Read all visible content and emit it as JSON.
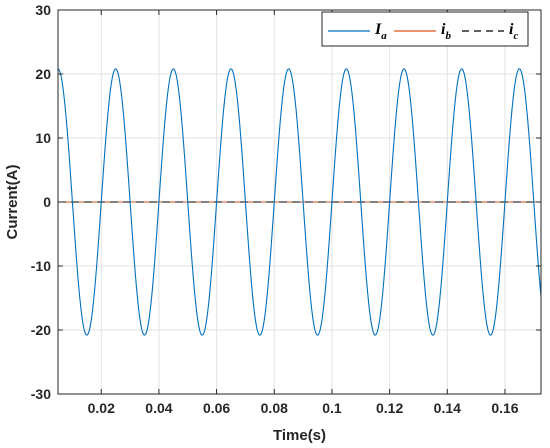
{
  "chart_data": {
    "type": "line",
    "xlabel": "Time(s)",
    "ylabel": "Current(A)",
    "xlim": [
      0.005,
      0.1725
    ],
    "ylim": [
      -30,
      30
    ],
    "xticks": [
      0.02,
      0.04,
      0.06,
      0.08,
      0.1,
      0.12,
      0.14,
      0.16
    ],
    "xtick_labels": [
      "0.02",
      "0.04",
      "0.06",
      "0.08",
      "0.1",
      "0.12",
      "0.14",
      "0.16"
    ],
    "yticks": [
      -30,
      -20,
      -10,
      0,
      10,
      20,
      30
    ],
    "ytick_labels": [
      "-30",
      "-20",
      "-10",
      "0",
      "10",
      "20",
      "30"
    ],
    "grid": true,
    "legend_position": "top-right",
    "series": [
      {
        "name": "I",
        "subscript": "a",
        "color": "#0072BD",
        "dash": "solid",
        "function": "sine",
        "amplitude": 20.8,
        "frequency_hz": 50,
        "peak_time": 0.005,
        "offset": 0
      },
      {
        "name": "i",
        "subscript": "b",
        "color": "#D95319",
        "dash": "solid",
        "function": "constant",
        "value": 0
      },
      {
        "name": "i",
        "subscript": "c",
        "color": "#000000",
        "dash": "dashed",
        "function": "constant",
        "value": 0
      }
    ]
  }
}
